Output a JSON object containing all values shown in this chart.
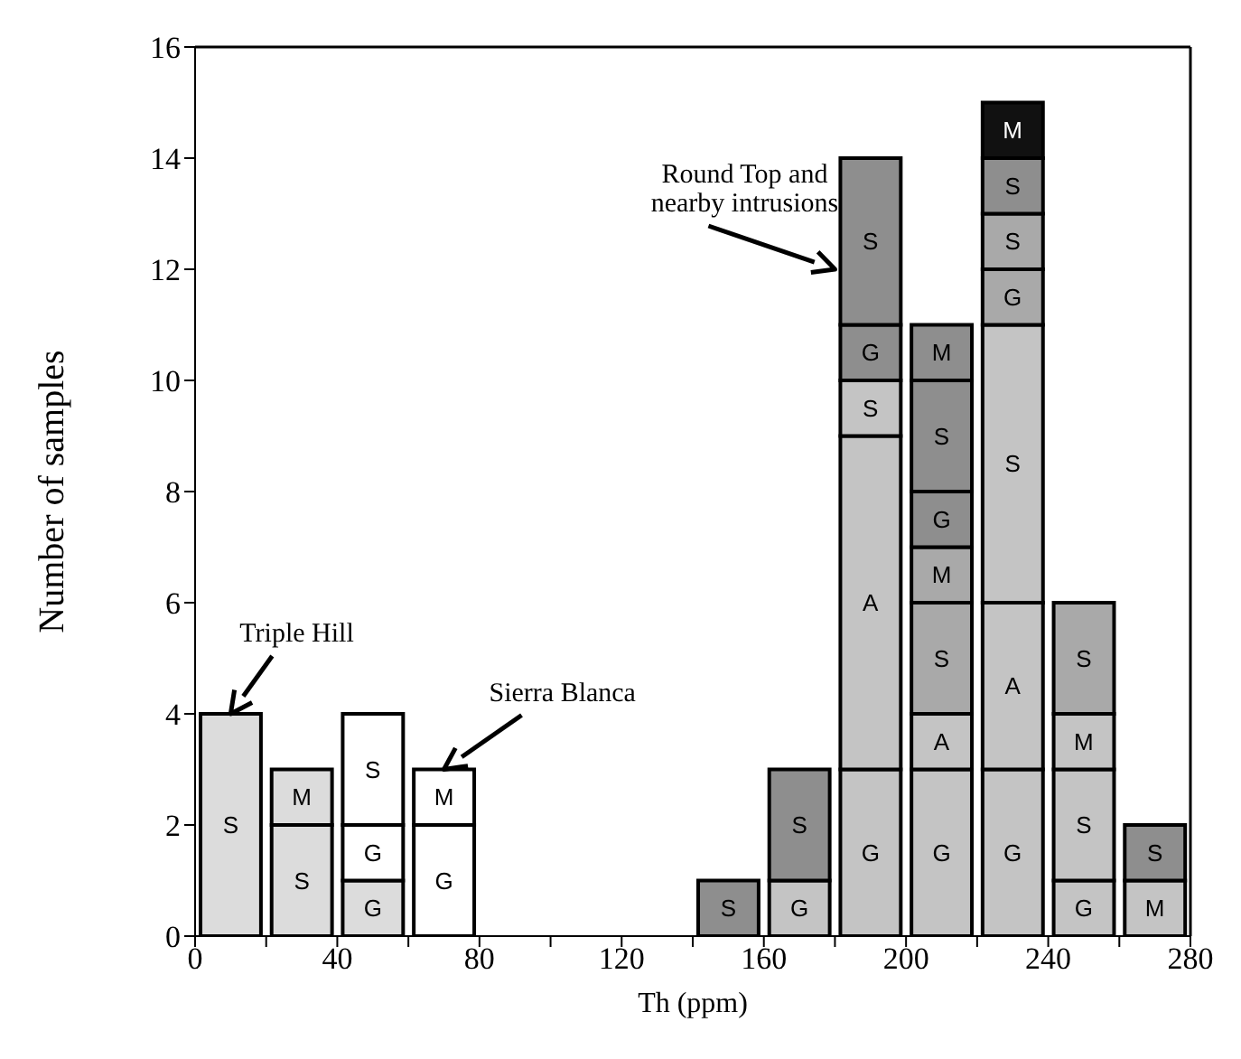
{
  "chart_data": {
    "type": "bar",
    "stacked": true,
    "xlabel": "Th (ppm)",
    "ylabel": "Number of samples",
    "x": [
      10,
      30,
      50,
      70,
      90,
      110,
      130,
      150,
      170,
      190,
      210,
      230,
      250,
      270
    ],
    "xlim": [
      0,
      280
    ],
    "xticks": [
      0,
      {
        "value": 20,
        "label": null
      },
      40,
      {
        "value": 60,
        "label": null
      },
      80,
      {
        "value": 100,
        "label": null
      },
      120,
      {
        "value": 140,
        "label": null
      },
      160,
      {
        "value": 180,
        "label": null
      },
      200,
      {
        "value": 220,
        "label": null
      },
      240,
      {
        "value": 260,
        "label": null
      },
      280
    ],
    "ylim": [
      0,
      16
    ],
    "yticks": [
      0,
      2,
      4,
      6,
      8,
      10,
      12,
      14,
      16
    ],
    "grid": false,
    "series": [
      {
        "values": [
          4,
          2,
          1,
          2,
          null,
          null,
          null,
          1,
          1,
          3,
          3,
          3,
          1,
          1
        ],
        "value_labels": [
          "S",
          "S",
          "G",
          "G",
          null,
          null,
          null,
          "S",
          "G",
          "G",
          "G",
          "G",
          "G",
          "M"
        ],
        "colors": [
          "#dcdcdc",
          "#dcdcdc",
          "#dcdcdc",
          "#ffffff",
          "#ffffff",
          "#ffffff",
          "#ffffff",
          "#8e8e8e",
          "#c4c4c4",
          "#c4c4c4",
          "#c4c4c4",
          "#c4c4c4",
          "#c4c4c4",
          "#c4c4c4"
        ]
      },
      {
        "values": [
          null,
          1,
          1,
          1,
          null,
          null,
          null,
          null,
          2,
          6,
          1,
          3,
          2,
          1
        ],
        "value_labels": [
          null,
          "M",
          "G",
          "M",
          null,
          null,
          null,
          null,
          "S",
          "A",
          "A",
          "A",
          "S",
          "S"
        ],
        "colors": [
          "#ffffff",
          "#dcdcdc",
          "#ffffff",
          "#ffffff",
          "#ffffff",
          "#ffffff",
          "#ffffff",
          "#ffffff",
          "#8e8e8e",
          "#c4c4c4",
          "#c4c4c4",
          "#c4c4c4",
          "#c4c4c4",
          "#8e8e8e"
        ]
      },
      {
        "values": [
          null,
          null,
          2,
          null,
          null,
          null,
          null,
          null,
          null,
          1,
          2,
          5,
          1,
          null
        ],
        "value_labels": [
          null,
          null,
          "S",
          null,
          null,
          null,
          null,
          null,
          null,
          "S",
          "S",
          "S",
          "M",
          null
        ],
        "colors": [
          "#ffffff",
          "#ffffff",
          "#ffffff",
          "#ffffff",
          "#ffffff",
          "#ffffff",
          "#ffffff",
          "#ffffff",
          "#ffffff",
          "#c4c4c4",
          "#a9a9a9",
          "#c4c4c4",
          "#c4c4c4",
          "#ffffff"
        ]
      },
      {
        "values": [
          null,
          null,
          null,
          null,
          null,
          null,
          null,
          null,
          null,
          1,
          1,
          1,
          2,
          null
        ],
        "value_labels": [
          null,
          null,
          null,
          null,
          null,
          null,
          null,
          null,
          null,
          "G",
          "M",
          "G",
          "S",
          null
        ],
        "colors": [
          "#ffffff",
          "#ffffff",
          "#ffffff",
          "#ffffff",
          "#ffffff",
          "#ffffff",
          "#ffffff",
          "#ffffff",
          "#ffffff",
          "#8e8e8e",
          "#a9a9a9",
          "#a9a9a9",
          "#a9a9a9",
          "#ffffff"
        ]
      },
      {
        "values": [
          null,
          null,
          null,
          null,
          null,
          null,
          null,
          null,
          null,
          3,
          1,
          1,
          null,
          null
        ],
        "value_labels": [
          null,
          null,
          null,
          null,
          null,
          null,
          null,
          null,
          null,
          "S",
          "G",
          "S",
          null,
          null
        ],
        "colors": [
          "#ffffff",
          "#ffffff",
          "#ffffff",
          "#ffffff",
          "#ffffff",
          "#ffffff",
          "#ffffff",
          "#ffffff",
          "#ffffff",
          "#8e8e8e",
          "#8e8e8e",
          "#a9a9a9",
          "#ffffff",
          "#ffffff"
        ]
      },
      {
        "values": [
          null,
          null,
          null,
          null,
          null,
          null,
          null,
          null,
          null,
          null,
          2,
          1,
          null,
          null
        ],
        "value_labels": [
          null,
          null,
          null,
          null,
          null,
          null,
          null,
          null,
          null,
          null,
          "S",
          "S",
          null,
          null
        ],
        "colors": [
          "#ffffff",
          "#ffffff",
          "#ffffff",
          "#ffffff",
          "#ffffff",
          "#ffffff",
          "#ffffff",
          "#ffffff",
          "#ffffff",
          "#ffffff",
          "#8e8e8e",
          "#8e8e8e",
          "#ffffff",
          "#ffffff"
        ]
      },
      {
        "values": [
          null,
          null,
          null,
          null,
          null,
          null,
          null,
          null,
          null,
          null,
          1,
          1,
          null,
          null
        ],
        "value_labels": [
          null,
          null,
          null,
          null,
          null,
          null,
          null,
          null,
          null,
          null,
          "M",
          "M",
          null,
          null
        ],
        "colors": [
          "#ffffff",
          "#ffffff",
          "#ffffff",
          "#ffffff",
          "#ffffff",
          "#ffffff",
          "#ffffff",
          "#ffffff",
          "#ffffff",
          "#ffffff",
          "#8e8e8e",
          "#111111",
          "#ffffff",
          "#ffffff"
        ]
      }
    ],
    "annotations": [
      {
        "text": "Triple Hill",
        "x": 10,
        "y": 4
      },
      {
        "text": "Sierra Blanca",
        "x": 70,
        "y": 3
      },
      {
        "text": "Round Top and\nnearby intrusions",
        "x": 180,
        "y": 12
      }
    ]
  }
}
